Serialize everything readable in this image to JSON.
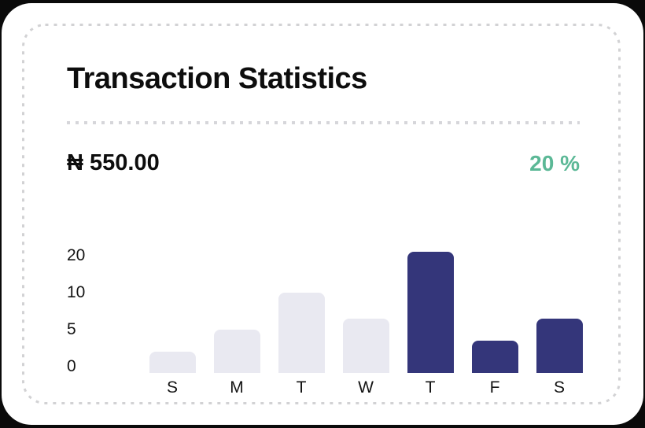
{
  "card": {
    "title": "Transaction Statistics",
    "amount": "₦ 550.00",
    "percent": "20 %"
  },
  "colors": {
    "accent_green": "#5BB896",
    "bar_active": "#34367A",
    "bar_inactive": "#E9E9F1",
    "text": "#0D0D0D",
    "dash_gray": "#D2D2D4"
  },
  "chart_data": {
    "type": "bar",
    "title": "Transaction Statistics",
    "categories": [
      "S",
      "M",
      "T",
      "W",
      "T",
      "F",
      "S"
    ],
    "values": [
      2,
      5,
      10,
      6.5,
      21,
      3.5,
      6.5
    ],
    "highlighted": [
      false,
      false,
      false,
      false,
      true,
      true,
      true
    ],
    "yticks": [
      0,
      5,
      10,
      20
    ],
    "xlabel": "",
    "ylabel": "",
    "layout": {
      "grid": false,
      "legend": false,
      "yticks_equally_spaced": true,
      "highlight_color": "#34367A",
      "muted_color": "#E9E9F1"
    }
  }
}
